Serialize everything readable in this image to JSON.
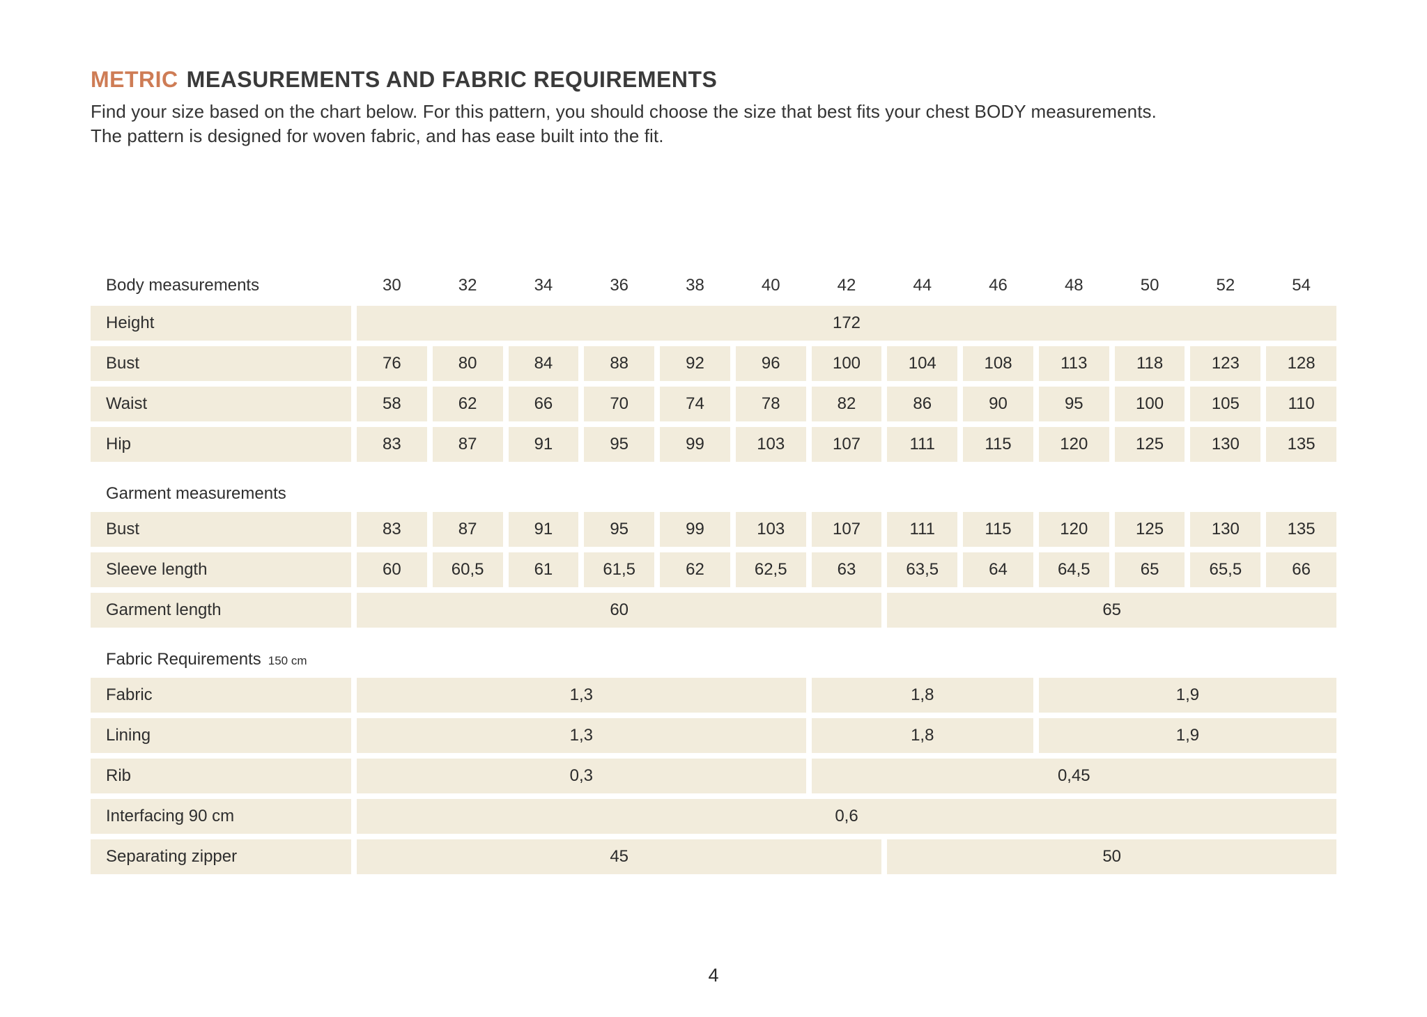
{
  "meta": {
    "accent_color": "#ce7c55",
    "cell_bg_color": "#f2ecdc"
  },
  "title": {
    "highlight": "METRIC",
    "rest": "MEASUREMENTS AND FABRIC REQUIREMENTS"
  },
  "intro": {
    "line1": "Find your size based on the chart below. For this pattern, you should choose the size that best fits your chest BODY measurements.",
    "line2": "The pattern is designed for woven fabric, and has ease built into the fit."
  },
  "page_number": "4",
  "table": {
    "header_label": "Body measurements",
    "sizes": [
      "30",
      "32",
      "34",
      "36",
      "38",
      "40",
      "42",
      "44",
      "46",
      "48",
      "50",
      "52",
      "54"
    ],
    "body_rows": [
      {
        "label": "Height",
        "cells": [
          {
            "span": 13,
            "value": "172"
          }
        ]
      },
      {
        "label": "Bust",
        "values": [
          "76",
          "80",
          "84",
          "88",
          "92",
          "96",
          "100",
          "104",
          "108",
          "113",
          "118",
          "123",
          "128"
        ]
      },
      {
        "label": "Waist",
        "values": [
          "58",
          "62",
          "66",
          "70",
          "74",
          "78",
          "82",
          "86",
          "90",
          "95",
          "100",
          "105",
          "110"
        ]
      },
      {
        "label": "Hip",
        "values": [
          "83",
          "87",
          "91",
          "95",
          "99",
          "103",
          "107",
          "111",
          "115",
          "120",
          "125",
          "130",
          "135"
        ]
      }
    ],
    "garment_section_label": "Garment measurements",
    "garment_rows": [
      {
        "label": "Bust",
        "values": [
          "83",
          "87",
          "91",
          "95",
          "99",
          "103",
          "107",
          "111",
          "115",
          "120",
          "125",
          "130",
          "135"
        ]
      },
      {
        "label": "Sleeve length",
        "values": [
          "60",
          "60,5",
          "61",
          "61,5",
          "62",
          "62,5",
          "63",
          "63,5",
          "64",
          "64,5",
          "65",
          "65,5",
          "66"
        ]
      },
      {
        "label": "Garment length",
        "cells": [
          {
            "span": 7,
            "value": "60"
          },
          {
            "span": 6,
            "value": "65"
          }
        ]
      }
    ],
    "fabric_section_label": "Fabric Requirements",
    "fabric_section_suffix": "150 cm",
    "fabric_rows": [
      {
        "label": "Fabric",
        "cells": [
          {
            "span": 6,
            "value": "1,3"
          },
          {
            "span": 3,
            "value": "1,8"
          },
          {
            "span": 4,
            "value": "1,9"
          }
        ]
      },
      {
        "label": "Lining",
        "cells": [
          {
            "span": 6,
            "value": "1,3"
          },
          {
            "span": 3,
            "value": "1,8"
          },
          {
            "span": 4,
            "value": "1,9"
          }
        ]
      },
      {
        "label": "Rib",
        "cells": [
          {
            "span": 6,
            "value": "0,3"
          },
          {
            "span": 7,
            "value": "0,45"
          }
        ]
      },
      {
        "label": "Interfacing 90 cm",
        "cells": [
          {
            "span": 13,
            "value": "0,6"
          }
        ]
      },
      {
        "label": "Separating zipper",
        "cells": [
          {
            "span": 7,
            "value": "45"
          },
          {
            "span": 6,
            "value": "50"
          }
        ]
      }
    ]
  }
}
